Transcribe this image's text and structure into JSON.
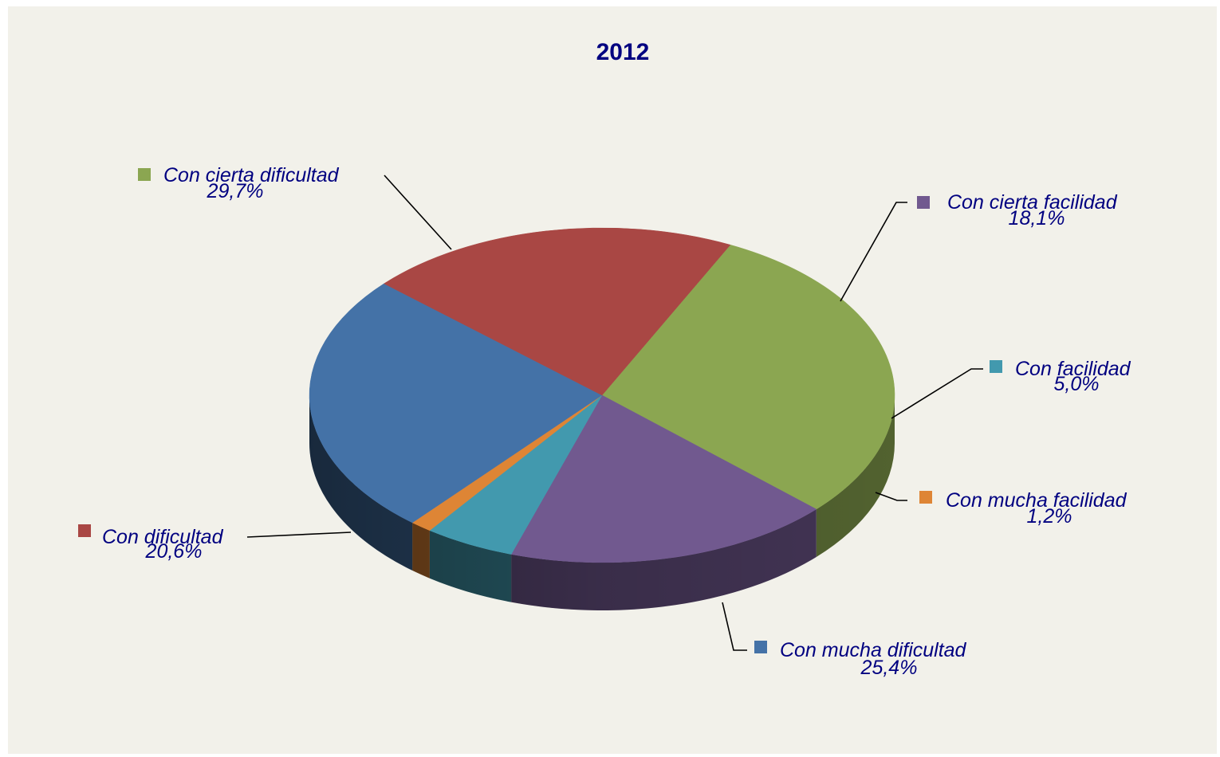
{
  "chart_data": {
    "type": "pie",
    "title": "2012",
    "slices": [
      {
        "label": "Con cierta dificultad",
        "value": 29.7,
        "value_label": "29,7%",
        "color": "#8ba651"
      },
      {
        "label": "Con cierta facilidad",
        "value": 18.1,
        "value_label": "18,1%",
        "color": "#71598f"
      },
      {
        "label": "Con facilidad",
        "value": 5.0,
        "value_label": "5,0%",
        "color": "#4299ae"
      },
      {
        "label": "Con mucha facilidad",
        "value": 1.2,
        "value_label": "1,2%",
        "color": "#de8535"
      },
      {
        "label": "Con mucha dificultad",
        "value": 25.4,
        "value_label": "25,4%",
        "color": "#4472a7"
      },
      {
        "label": "Con dificultad",
        "value": 20.6,
        "value_label": "20,6%",
        "color": "#a94744"
      }
    ],
    "three_d": true,
    "legend": "none",
    "data_labels": "outside with leader lines"
  }
}
